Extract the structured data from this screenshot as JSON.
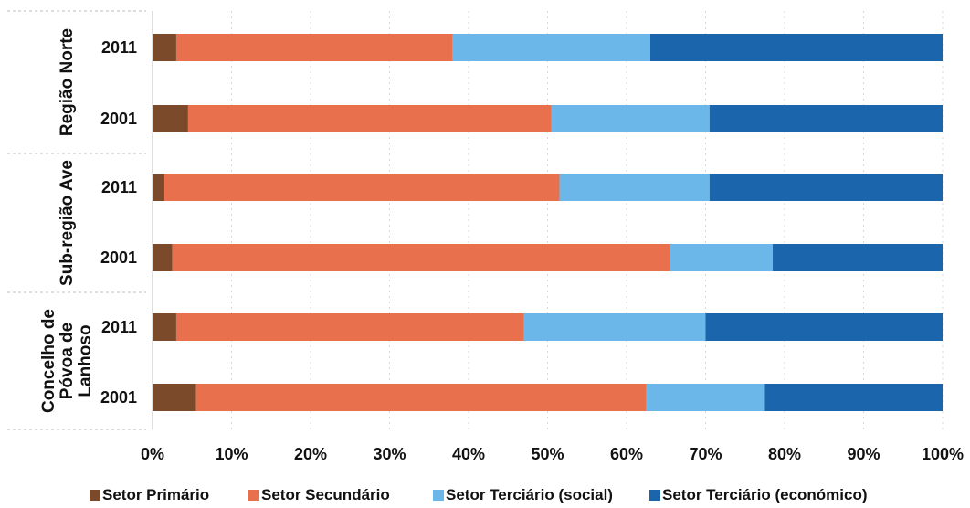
{
  "chart_data": {
    "type": "bar",
    "orientation": "horizontal",
    "stacked": "percent",
    "xlim": [
      0,
      100
    ],
    "x_ticks": [
      "0%",
      "10%",
      "20%",
      "30%",
      "40%",
      "50%",
      "60%",
      "70%",
      "80%",
      "90%",
      "100%"
    ],
    "grid": true,
    "legend_position": "bottom",
    "groups": [
      {
        "name": "Região Norte",
        "categories": [
          "2011",
          "2001"
        ]
      },
      {
        "name": "Sub-região Ave",
        "categories": [
          "2011",
          "2001"
        ]
      },
      {
        "name": "Concelho de Póvoa de Lanhoso",
        "label_lines": [
          "Concelho de",
          "Póvoa de",
          "Lanhoso"
        ],
        "categories": [
          "2011",
          "2001"
        ]
      }
    ],
    "series": [
      {
        "name": "Setor Primário",
        "color": "#7a4a2b",
        "values": [
          3,
          4.5,
          1.5,
          2.5,
          3,
          5.5
        ]
      },
      {
        "name": "Setor Secundário",
        "color": "#e8704c",
        "values": [
          35,
          46,
          50,
          63,
          44,
          57
        ]
      },
      {
        "name": "Setor Terciário (social)",
        "color": "#6cb7ea",
        "values": [
          25,
          20,
          19,
          13,
          23,
          15
        ]
      },
      {
        "name": "Setor Terciário (económico)",
        "color": "#1b65ad",
        "values": [
          37,
          29.5,
          29.5,
          21.5,
          30,
          22.5
        ]
      }
    ]
  }
}
